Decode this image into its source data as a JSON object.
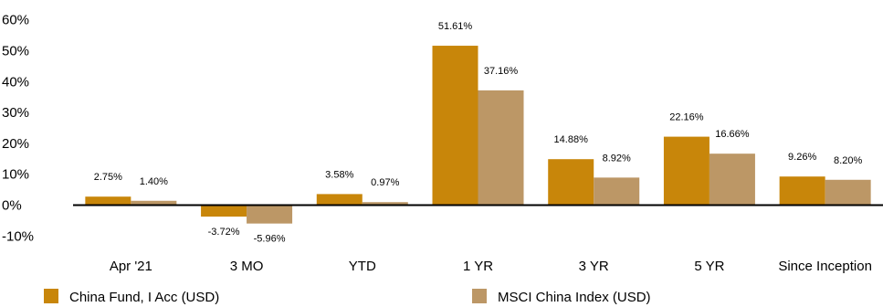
{
  "chart_data": {
    "type": "bar",
    "categories": [
      "Apr '21",
      "3 MO",
      "YTD",
      "1 YR",
      "3 YR",
      "5 YR",
      "Since Inception"
    ],
    "series": [
      {
        "name": "China Fund, I Acc (USD)",
        "values": [
          2.75,
          -3.72,
          3.58,
          51.61,
          14.88,
          22.16,
          9.26
        ],
        "labels": [
          "2.75%",
          "-3.72%",
          "3.58%",
          "51.61%",
          "14.88%",
          "22.16%",
          "9.26%"
        ],
        "color": "#C8860A"
      },
      {
        "name": "MSCI China Index (USD)",
        "values": [
          1.4,
          -5.96,
          0.97,
          37.16,
          8.92,
          16.66,
          8.2
        ],
        "labels": [
          "1.40%",
          "-5.96%",
          "0.97%",
          "37.16%",
          "8.92%",
          "16.66%",
          "8.20%"
        ],
        "color": "#BC9766"
      }
    ],
    "y_ticks": [
      60,
      50,
      40,
      30,
      20,
      10,
      0,
      -10
    ],
    "y_tick_labels": [
      "60%",
      "50%",
      "40%",
      "30%",
      "20%",
      "10%",
      "0%",
      "-10%"
    ],
    "ylim": [
      -10,
      60
    ],
    "grid": false,
    "legend_position": "bottom"
  }
}
